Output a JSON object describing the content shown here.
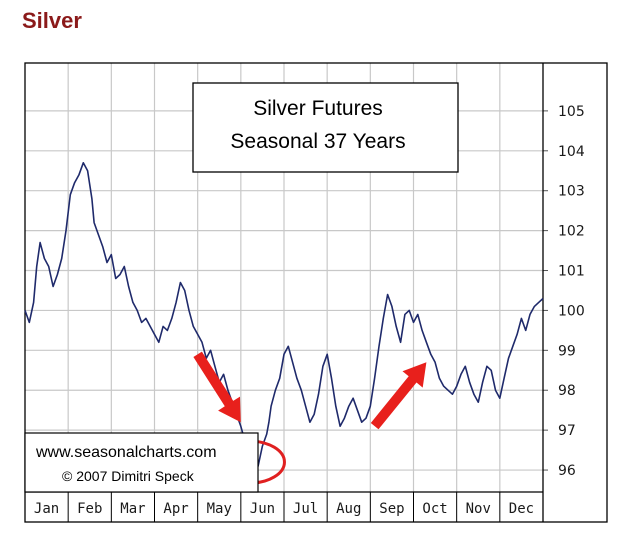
{
  "page": {
    "heading": "Silver",
    "heading_color": "#8b1a1a"
  },
  "chart_data": {
    "type": "line",
    "title_lines": [
      "Silver Futures",
      "Seasonal 37 Years"
    ],
    "categories": [
      "Jan",
      "Feb",
      "Mar",
      "Apr",
      "May",
      "Jun",
      "Jul",
      "Aug",
      "Sep",
      "Oct",
      "Nov",
      "Dec"
    ],
    "y_ticks": [
      96,
      97,
      98,
      99,
      100,
      101,
      102,
      103,
      104,
      105
    ],
    "ylim": [
      95.45,
      106.2
    ],
    "xlim": [
      0,
      12
    ],
    "grid": true,
    "credit": [
      "www.seasonalcharts.com",
      "© 2007   Dimitri Speck"
    ],
    "series": [
      {
        "color": "#1f2a6b",
        "x": [
          0.0,
          0.1,
          0.2,
          0.27,
          0.35,
          0.45,
          0.55,
          0.65,
          0.75,
          0.85,
          0.95,
          1.05,
          1.15,
          1.25,
          1.35,
          1.45,
          1.55,
          1.6,
          1.7,
          1.8,
          1.9,
          2.0,
          2.1,
          2.2,
          2.3,
          2.4,
          2.5,
          2.6,
          2.7,
          2.8,
          2.9,
          3.0,
          3.1,
          3.2,
          3.3,
          3.4,
          3.5,
          3.6,
          3.7,
          3.8,
          3.9,
          4.0,
          4.1,
          4.2,
          4.3,
          4.4,
          4.5,
          4.6,
          4.7,
          4.8,
          4.9,
          5.0,
          5.1,
          5.2,
          5.3,
          5.4,
          5.5,
          5.6,
          5.65,
          5.7,
          5.8,
          5.9,
          6.0,
          6.1,
          6.2,
          6.3,
          6.4,
          6.5,
          6.6,
          6.7,
          6.8,
          6.9,
          7.0,
          7.1,
          7.2,
          7.3,
          7.4,
          7.5,
          7.6,
          7.7,
          7.8,
          7.9,
          8.0,
          8.1,
          8.2,
          8.3,
          8.4,
          8.5,
          8.6,
          8.7,
          8.8,
          8.9,
          9.0,
          9.1,
          9.2,
          9.3,
          9.4,
          9.5,
          9.6,
          9.7,
          9.8,
          9.9,
          10.0,
          10.1,
          10.2,
          10.3,
          10.4,
          10.5,
          10.6,
          10.7,
          10.8,
          10.9,
          11.0,
          11.1,
          11.2,
          11.3,
          11.4,
          11.5,
          11.6,
          11.7,
          11.8,
          11.9,
          12.0
        ],
        "values": [
          100.0,
          99.7,
          100.2,
          101.1,
          101.7,
          101.3,
          101.1,
          100.6,
          100.9,
          101.3,
          102.0,
          102.9,
          103.2,
          103.4,
          103.7,
          103.5,
          102.8,
          102.2,
          101.9,
          101.6,
          101.2,
          101.4,
          100.8,
          100.9,
          101.1,
          100.6,
          100.2,
          100.0,
          99.7,
          99.8,
          99.6,
          99.4,
          99.2,
          99.6,
          99.5,
          99.8,
          100.2,
          100.7,
          100.5,
          100.0,
          99.6,
          99.4,
          99.2,
          98.8,
          99.0,
          98.6,
          98.2,
          98.4,
          98.0,
          97.7,
          97.4,
          97.1,
          96.7,
          96.5,
          96.3,
          96.1,
          96.6,
          96.9,
          97.2,
          97.6,
          98.0,
          98.3,
          98.9,
          99.1,
          98.7,
          98.3,
          98.0,
          97.6,
          97.2,
          97.4,
          97.9,
          98.6,
          98.9,
          98.3,
          97.6,
          97.1,
          97.3,
          97.6,
          97.8,
          97.5,
          97.2,
          97.3,
          97.6,
          98.3,
          99.1,
          99.8,
          100.4,
          100.1,
          99.6,
          99.2,
          99.9,
          100.0,
          99.7,
          99.9,
          99.5,
          99.2,
          98.9,
          98.7,
          98.3,
          98.1,
          98.0,
          97.9,
          98.1,
          98.4,
          98.6,
          98.2,
          97.9,
          97.7,
          98.2,
          98.6,
          98.5,
          98.0,
          97.8,
          98.3,
          98.8,
          99.1,
          99.4,
          99.8,
          99.5,
          99.9,
          100.1,
          100.2,
          100.3
        ]
      }
    ],
    "annotations": {
      "circle": {
        "x": 5.2,
        "y": 96.2,
        "color": "#e02020",
        "note": "seasonal low"
      },
      "arrows": [
        {
          "from": [
            4.0,
            98.9
          ],
          "to": [
            5.0,
            97.2
          ],
          "color": "#e8201c"
        },
        {
          "from": [
            8.1,
            97.1
          ],
          "to": [
            9.3,
            98.7
          ],
          "color": "#e8201c"
        }
      ]
    }
  }
}
